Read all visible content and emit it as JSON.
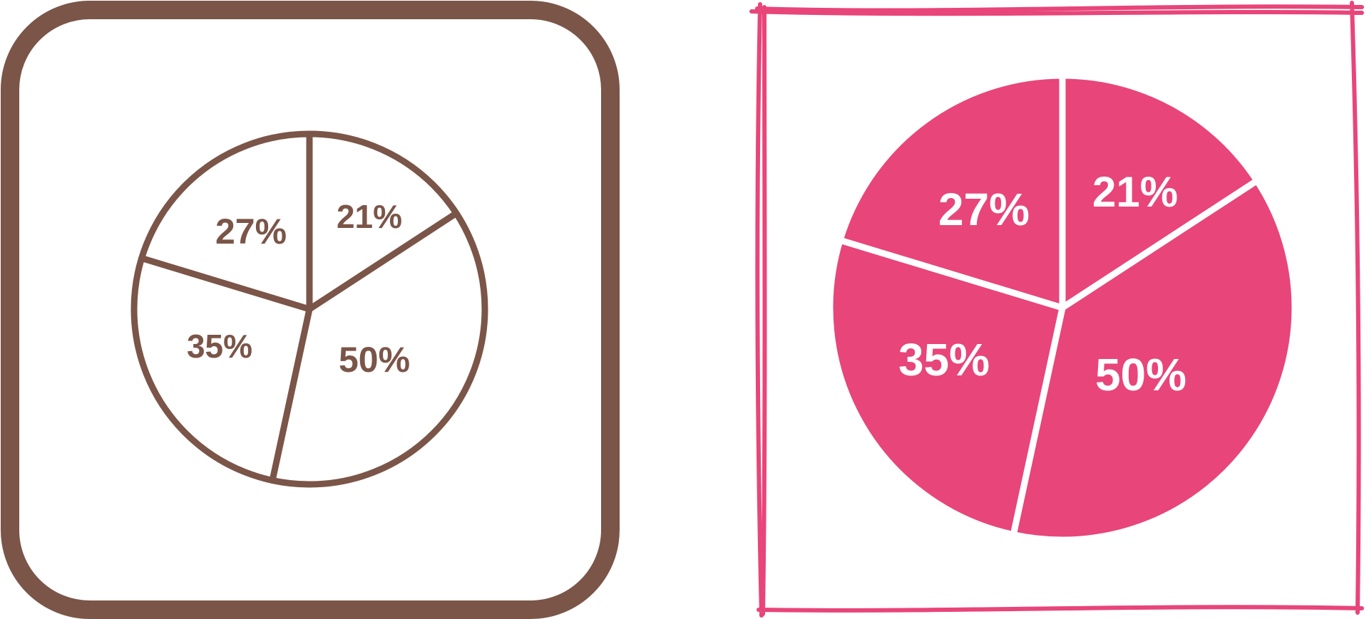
{
  "chart_data": [
    {
      "type": "pie",
      "style": "outline",
      "color": "#7a5548",
      "slices": [
        {
          "label": "21%",
          "value": 21
        },
        {
          "label": "50%",
          "value": 50
        },
        {
          "label": "35%",
          "value": 35
        },
        {
          "label": "27%",
          "value": 27
        }
      ]
    },
    {
      "type": "pie",
      "style": "filled",
      "color": "#e8457a",
      "text_color": "#ffffff",
      "slices": [
        {
          "label": "21%",
          "value": 21
        },
        {
          "label": "50%",
          "value": 50
        },
        {
          "label": "35%",
          "value": 35
        },
        {
          "label": "27%",
          "value": 27
        }
      ]
    }
  ]
}
